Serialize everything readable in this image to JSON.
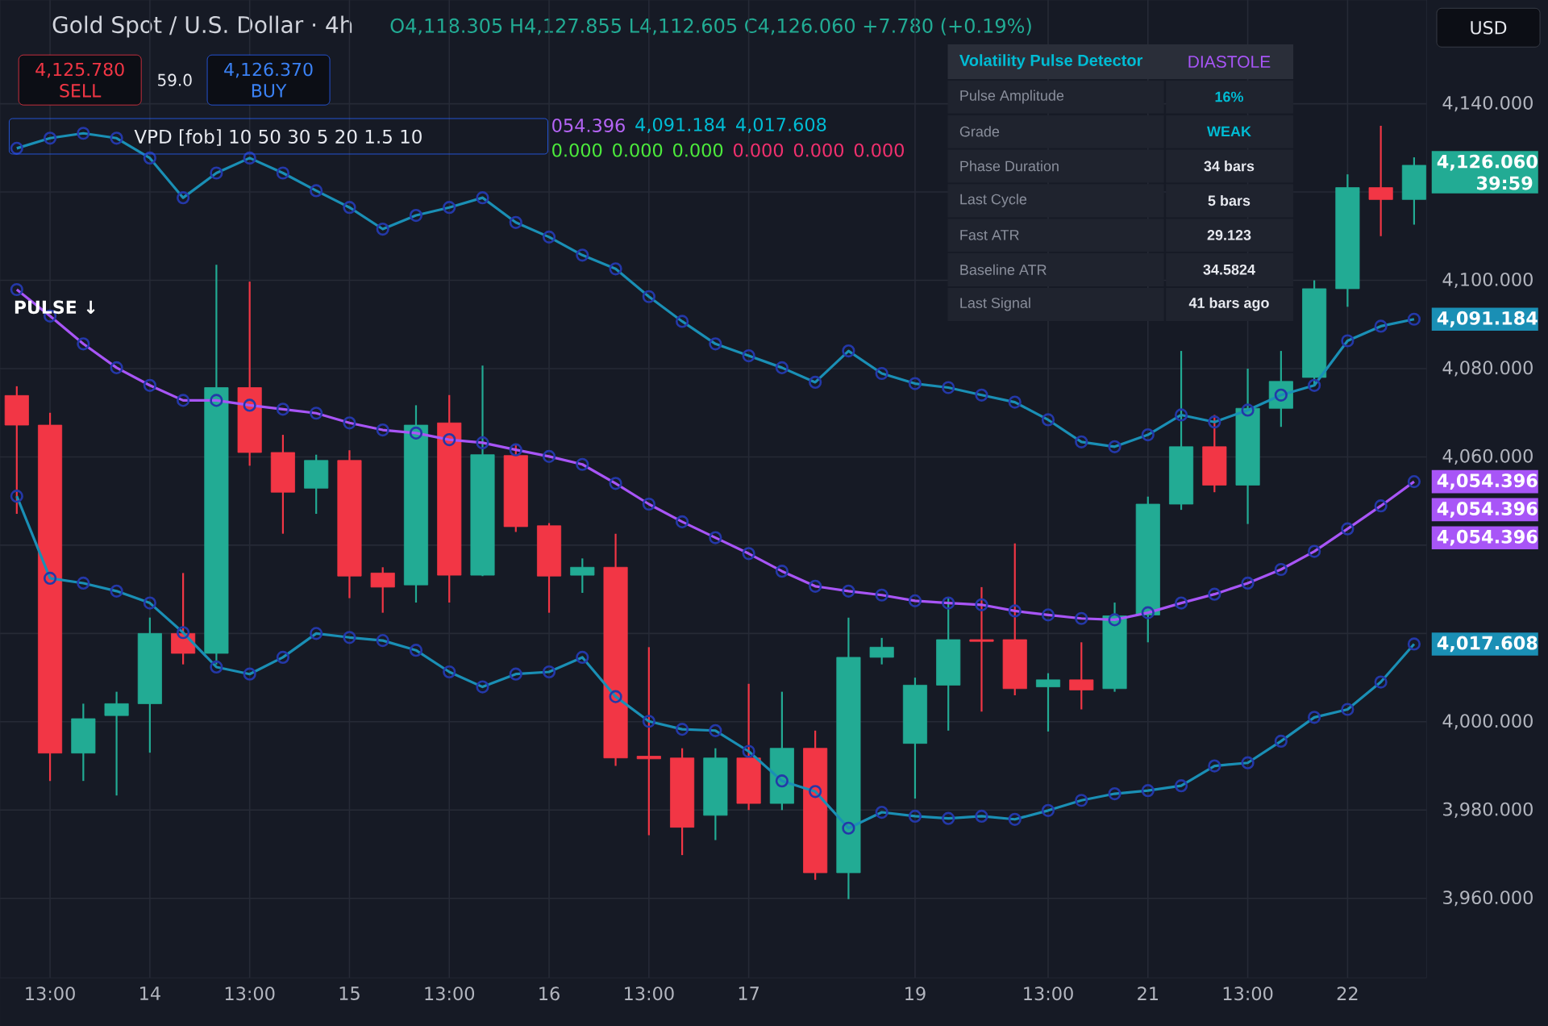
{
  "chart_data": [
    {
      "type": "candlestick",
      "title": "Gold Spot / U.S. Dollar · 4h",
      "subtitle": "O4,118.305 H4,127.855 L4,112.605 C4,126.060 +7.780 (+0.19%)",
      "categories": [
        null,
        "13:00",
        null,
        null,
        "14",
        null,
        null,
        "13:00",
        null,
        null,
        "15",
        null,
        null,
        "13:00",
        null,
        null,
        "16",
        null,
        null,
        "13:00",
        null,
        null,
        "17",
        null,
        null,
        null,
        null,
        "19",
        null,
        null,
        null,
        "13:00",
        null,
        null,
        "21",
        null,
        null,
        "13:00",
        null,
        null,
        "22",
        null,
        null
      ],
      "ohlc": [
        [
          4073.9,
          4076,
          4047.1,
          4067.2
        ],
        [
          4067.2,
          4070,
          3986.6,
          3992.9
        ],
        [
          3992.9,
          4004.1,
          3986.6,
          4000.7
        ],
        [
          4001.4,
          4006.8,
          3983.3,
          4004.1
        ],
        [
          4004.1,
          4023.6,
          3993.0,
          4020.0
        ],
        [
          4020.0,
          4033.7,
          4013.0,
          4015.5
        ],
        [
          4015.5,
          4103.5,
          4013.0,
          4075.7
        ],
        [
          4075.7,
          4099.7,
          4058.0,
          4061.0
        ],
        [
          4061.0,
          4065.0,
          4042.6,
          4052.0
        ],
        [
          4052.9,
          4060.5,
          4047.1,
          4059.2
        ],
        [
          4059.2,
          4061.5,
          4028.0,
          4033.0
        ],
        [
          4033.7,
          4035.0,
          4024.7,
          4030.5
        ],
        [
          4031.0,
          4071.7,
          4027.0,
          4067.2
        ],
        [
          4067.7,
          4074.0,
          4027.0,
          4033.2
        ],
        [
          4033.2,
          4080.7,
          4033.0,
          4060.5
        ],
        [
          4060.3,
          4063.0,
          4043.0,
          4044.2
        ],
        [
          4044.4,
          4045.0,
          4024.7,
          4033.0
        ],
        [
          4033.2,
          4037.0,
          4029.2,
          4035.0
        ],
        [
          4035.0,
          4042.6,
          3990.0,
          3991.8
        ],
        [
          3992.2,
          4016.9,
          3974.3,
          3991.6
        ],
        [
          3991.8,
          3994.0,
          3969.8,
          3976.1
        ],
        [
          3978.8,
          3994.0,
          3973.2,
          3991.8
        ],
        [
          3991.8,
          4008.6,
          3980.0,
          3981.5
        ],
        [
          3981.5,
          4006.8,
          3980.0,
          3994.0
        ],
        [
          3994.0,
          3998.0,
          3964.2,
          3965.8
        ],
        [
          3965.8,
          4023.6,
          3959.8,
          4014.6
        ],
        [
          4014.6,
          4019.0,
          4013.0,
          4016.9
        ],
        [
          3995.1,
          4010.0,
          3982.6,
          4008.3
        ],
        [
          4008.3,
          4028.0,
          3998.0,
          4018.6
        ],
        [
          4018.6,
          4030.5,
          4002.3,
          4018.2
        ],
        [
          4018.6,
          4040.4,
          4006.0,
          4007.5
        ],
        [
          4007.9,
          4011.0,
          3997.8,
          4009.5
        ],
        [
          4009.5,
          4018.0,
          4002.8,
          4007.2
        ],
        [
          4007.5,
          4027.0,
          4006.8,
          4024.0
        ],
        [
          4024.2,
          4051.0,
          4018.0,
          4049.3
        ],
        [
          4049.3,
          4084.0,
          4048.0,
          4062.3
        ],
        [
          4062.3,
          4069.5,
          4052.0,
          4053.6
        ],
        [
          4053.6,
          4080.0,
          4044.8,
          4071.0
        ],
        [
          4071.0,
          4084.0,
          4066.8,
          4077.1
        ],
        [
          4078.0,
          4100.0,
          4076.0,
          4098.1
        ],
        [
          4098.1,
          4124.0,
          4094.0,
          4121.0
        ],
        [
          4121.0,
          4135.0,
          4110.0,
          4118.3
        ],
        [
          4118.305,
          4127.855,
          4112.605,
          4126.06
        ]
      ],
      "colors": [
        "#f23645",
        "#f23645",
        "#22ab94",
        "#22ab94",
        "#22ab94",
        "#f23645",
        "#22ab94",
        "#f23645",
        "#f23645",
        "#22ab94",
        "#f23645",
        "#f23645",
        "#22ab94",
        "#f23645",
        "#22ab94",
        "#f23645",
        "#f23645",
        "#22ab94",
        "#f23645",
        "#f23645",
        "#f23645",
        "#22ab94",
        "#f23645",
        "#22ab94",
        "#f23645",
        "#22ab94",
        "#22ab94",
        "#22ab94",
        "#22ab94",
        "#f23645",
        "#f23645",
        "#22ab94",
        "#f23645",
        "#22ab94",
        "#22ab94",
        "#22ab94",
        "#f23645",
        "#22ab94",
        "#22ab94",
        "#22ab94",
        "#22ab94",
        "#f23645",
        "#22ab94"
      ],
      "series": [
        {
          "type": "line",
          "color": "#1a8fb5",
          "values": [
            4129.9,
            4132.2,
            4133.3,
            4132.2,
            4127.7,
            4118.7,
            4124.3,
            4127.7,
            4124.3,
            4120.3,
            4116.5,
            4111.6,
            4114.7,
            4116.5,
            4118.7,
            4113.1,
            4109.8,
            4105.7,
            4102.6,
            4096.3,
            4090.7,
            4085.6,
            4082.9,
            4080.2,
            4076.9,
            4084.0,
            4078.9,
            4076.6,
            4075.7,
            4074.0,
            4072.4,
            4068.4,
            4063.4,
            4062.3,
            4065.0,
            4069.5,
            4067.9,
            4070.6,
            4074.0,
            4076.2,
            4086.3,
            4089.6,
            4091.184
          ]
        },
        {
          "type": "line",
          "color": "#a855f7",
          "values": [
            4097.9,
            4091.9,
            4085.6,
            4080.2,
            4076.2,
            4072.8,
            4072.8,
            4071.7,
            4070.8,
            4069.9,
            4067.7,
            4066.1,
            4065.4,
            4063.9,
            4063.2,
            4061.6,
            4060.1,
            4058.3,
            4054.0,
            4049.3,
            4045.3,
            4041.7,
            4038.1,
            4034.1,
            4030.7,
            4029.6,
            4028.7,
            4027.4,
            4026.9,
            4026.5,
            4025.1,
            4024.2,
            4023.4,
            4023.1,
            4024.7,
            4026.9,
            4028.9,
            4031.4,
            4034.5,
            4038.6,
            4043.7,
            4048.9,
            4054.396
          ]
        },
        {
          "type": "line",
          "color": "#1a8fb5",
          "values": [
            4051.1,
            4032.5,
            4031.4,
            4029.6,
            4026.9,
            4020.2,
            4012.4,
            4010.8,
            4014.6,
            4020.0,
            4019.1,
            4018.4,
            4016.2,
            4011.3,
            4007.9,
            4010.8,
            4011.3,
            4014.6,
            4005.7,
            4000.1,
            3998.3,
            3998.0,
            3993.3,
            3986.6,
            3984.2,
            3975.9,
            3979.5,
            3978.6,
            3978.1,
            3978.6,
            3977.9,
            3979.9,
            3982.2,
            3983.7,
            3984.4,
            3985.5,
            3990.0,
            3990.7,
            3995.6,
            4001.0,
            4002.8,
            4009.0,
            4017.608
          ]
        }
      ],
      "marker": "circle",
      "ylim": [
        3942,
        4163.5
      ],
      "yticks": [
        {
          "value": 3960,
          "label": "3,960.000"
        },
        {
          "value": 3980,
          "label": "3,980.000"
        },
        {
          "value": 4000,
          "label": "4,000.000"
        },
        {
          "value": 4020,
          "label": null
        },
        {
          "value": 4040,
          "label": null
        },
        {
          "value": 4060,
          "label": "4,060.000"
        },
        {
          "value": 4080,
          "label": "4,080.000"
        },
        {
          "value": 4100,
          "label": "4,100.000"
        },
        {
          "value": 4120,
          "label": null
        },
        {
          "value": 4140,
          "label": "4,140.000"
        }
      ],
      "grid": true,
      "annotations": [
        "4,125.780",
        "SELL",
        "59.0",
        "4,126.370",
        "BUY",
        "VPD [fob] 10 50 30 5 20 1.5 10",
        "054.396",
        "4,091.184",
        "4,017.608",
        "0.000",
        "0.000",
        "0.000",
        "0.000",
        "0.000",
        "0.000",
        "USD",
        "PULSE ↓",
        "39:59",
        "4,126.060",
        "4,091.184",
        "4,054.396",
        "4,054.396",
        "4,054.396",
        "4,017.608"
      ]
    },
    {
      "type": "other",
      "title": "Volatility Pulse Detector",
      "annotations": [
        "DIASTOLE",
        "Pulse Amplitude",
        "16%",
        "Grade",
        "WEAK",
        "Phase Duration",
        "34 bars",
        "Last Cycle",
        "5 bars",
        "Fast ATR",
        "29.123",
        "Baseline ATR",
        "34.5824",
        "Last Signal",
        "41 bars ago"
      ]
    }
  ]
}
